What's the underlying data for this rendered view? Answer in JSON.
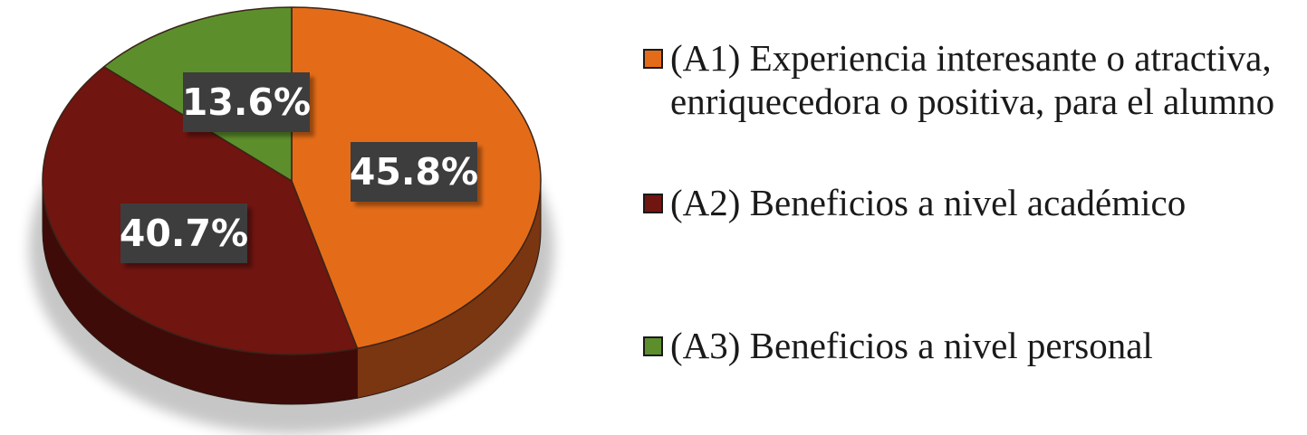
{
  "chart_data": {
    "type": "pie",
    "style": "3d",
    "slices": [
      {
        "label": "(A1) Experiencia interesante o atractiva, enriquecedora o positiva, para el alumno",
        "value": 45.8,
        "display": "45.8%",
        "color": "#E46C18",
        "side_color": "#7A3511"
      },
      {
        "label": "(A2) Beneficios a nivel académico",
        "value": 40.7,
        "display": "40.7%",
        "color": "#701510",
        "side_color": "#3E0B09"
      },
      {
        "label": "(A3) Beneficios a nivel personal",
        "value": 13.6,
        "display": "13.6%",
        "color": "#5C8F2C",
        "side_color": "#3A5C1C"
      }
    ],
    "legend_position": "right",
    "start_angle_deg": 90,
    "direction": "clockwise"
  }
}
